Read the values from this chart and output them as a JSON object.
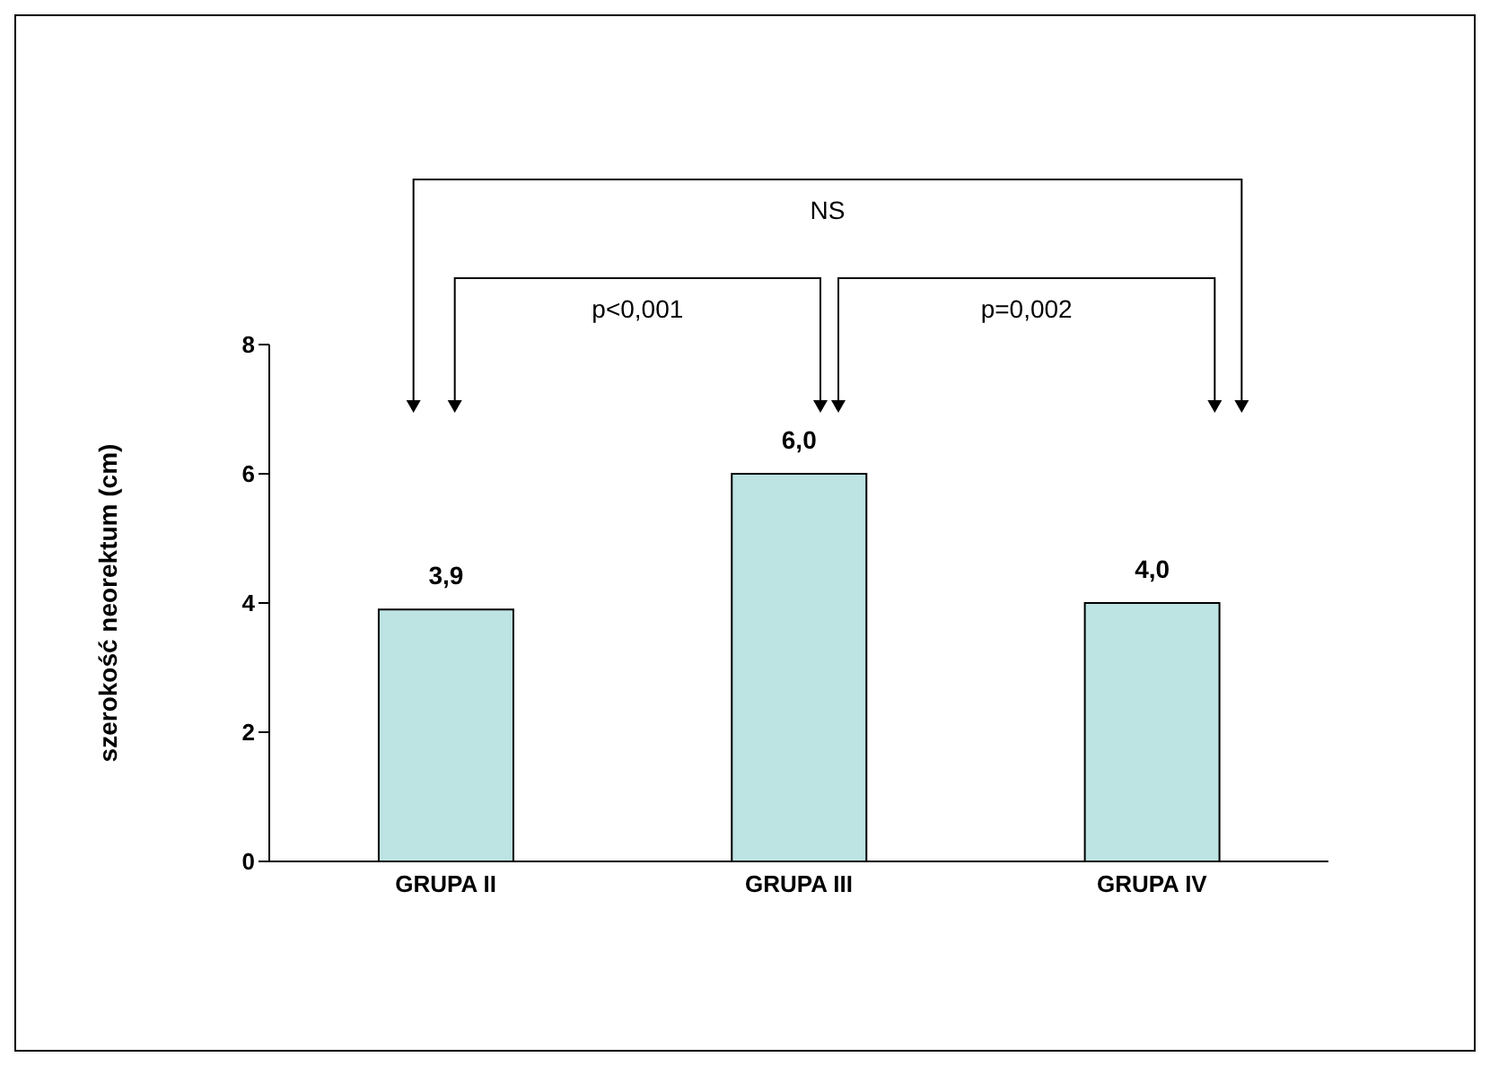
{
  "chart_data": {
    "type": "bar",
    "ylabel": "szerokość neorektum (cm)",
    "categories": [
      "GRUPA II",
      "GRUPA III",
      "GRUPA IV"
    ],
    "values": [
      3.9,
      6.0,
      4.0
    ],
    "value_labels": [
      "3,9",
      "6,0",
      "4,0"
    ],
    "color": "#bde3e3",
    "ylim": [
      0,
      8
    ],
    "yticks": [
      0,
      2,
      4,
      6,
      8
    ],
    "grid": false,
    "legend": false,
    "annotations": [
      "NS",
      "p<0,001",
      "p=0,002"
    ]
  }
}
